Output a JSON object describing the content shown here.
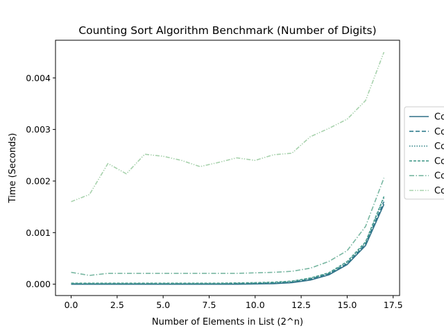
{
  "chart_data": {
    "type": "line",
    "title": "Counting Sort Algorithm Benchmark (Number of Digits)",
    "xlabel": "Number of Elements in List (2^n)",
    "ylabel": "Time (Seconds)",
    "xlim": [
      -0.85,
      17.85
    ],
    "ylim": [
      -0.00022,
      0.00473
    ],
    "xticks": [
      0.0,
      2.5,
      5.0,
      7.5,
      10.0,
      12.5,
      15.0,
      17.5
    ],
    "xtick_labels": [
      "0.0",
      "2.5",
      "5.0",
      "7.5",
      "10.0",
      "12.5",
      "15.0",
      "17.5"
    ],
    "yticks": [
      0.0,
      0.001,
      0.002,
      0.003,
      0.004
    ],
    "ytick_labels": [
      "0.000",
      "0.001",
      "0.002",
      "0.003",
      "0.004"
    ],
    "grid": false,
    "legend_position": "center-right",
    "x": [
      0,
      1,
      2,
      3,
      4,
      5,
      6,
      7,
      8,
      9,
      10,
      11,
      12,
      13,
      14,
      15,
      16,
      17
    ],
    "series": [
      {
        "name": "Co",
        "color": "#2f6f86",
        "dash": "solid",
        "values": [
          0.0,
          0.0,
          0.0,
          0.0,
          0.0,
          0.0,
          0.0,
          0.0,
          0.0,
          0.0,
          5e-06,
          1e-05,
          3e-05,
          8e-05,
          0.00018,
          0.00038,
          0.00075,
          0.00155
        ]
      },
      {
        "name": "Co",
        "color": "#2e7b8c",
        "dash": "dashed",
        "values": [
          5e-06,
          5e-06,
          5e-06,
          5e-06,
          5e-06,
          5e-06,
          5e-06,
          5e-06,
          5e-06,
          8e-06,
          1e-05,
          2e-05,
          4e-05,
          0.0001,
          0.0002,
          0.0004,
          0.00078,
          0.0016
        ]
      },
      {
        "name": "Co",
        "color": "#35868a",
        "dash": "dotted",
        "values": [
          1e-05,
          1e-05,
          1e-05,
          1e-05,
          1e-05,
          1e-05,
          1e-05,
          1e-05,
          1e-05,
          1.5e-05,
          2e-05,
          3e-05,
          5e-05,
          0.00011,
          0.00021,
          0.00042,
          0.0008,
          0.00168
        ]
      },
      {
        "name": "Co",
        "color": "#4b9e8f",
        "dash": "dashed-fine",
        "values": [
          2e-05,
          2e-05,
          2e-05,
          2e-05,
          2e-05,
          2e-05,
          2e-05,
          2e-05,
          2e-05,
          2.5e-05,
          3e-05,
          4e-05,
          6e-05,
          0.00012,
          0.00022,
          0.00044,
          0.00082,
          0.0017
        ]
      },
      {
        "name": "Co",
        "color": "#79b7a2",
        "dash": "dashdot",
        "values": [
          0.00023,
          0.00017,
          0.00021,
          0.00021,
          0.00021,
          0.00021,
          0.00021,
          0.00021,
          0.00021,
          0.00021,
          0.00022,
          0.00023,
          0.00025,
          0.00031,
          0.00044,
          0.00065,
          0.00112,
          0.00206
        ]
      },
      {
        "name": "Co",
        "color": "#a8d2ad",
        "dash": "dashdotdot",
        "values": [
          0.0016,
          0.00174,
          0.00234,
          0.00214,
          0.00252,
          0.00248,
          0.0024,
          0.00228,
          0.00236,
          0.00245,
          0.0024,
          0.00251,
          0.00254,
          0.00286,
          0.00302,
          0.0032,
          0.00356,
          0.0045
        ]
      }
    ]
  }
}
